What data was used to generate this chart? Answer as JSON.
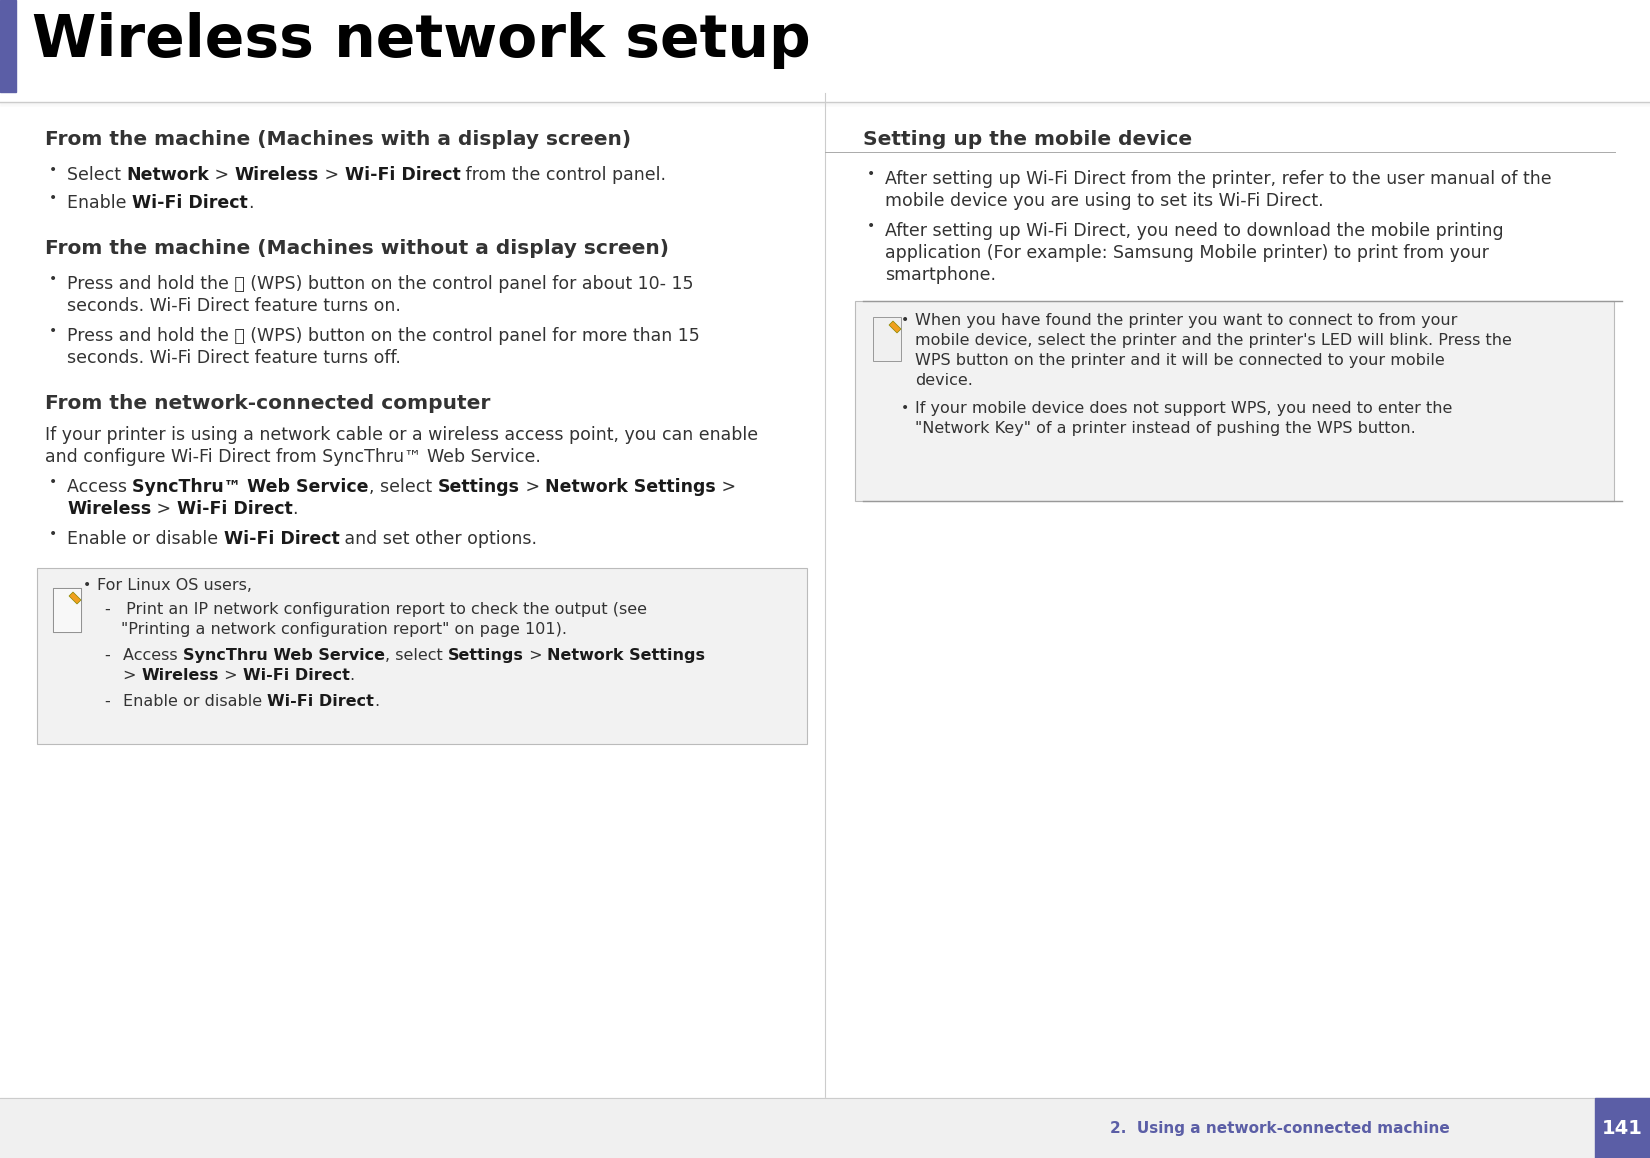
{
  "bg_color": "#ffffff",
  "title": "Wireless network setup",
  "title_color": "#000000",
  "title_fontsize": 42,
  "accent_color": "#5b5ea6",
  "header_color": "#333333",
  "body_color": "#333333",
  "header_fontsize": 14.5,
  "body_fontsize": 12.5,
  "note_fontsize": 11.5,
  "section1_header": "From the machine (Machines with a display screen)",
  "section2_header": "From the machine (Machines without a display screen)",
  "section3_header": "From the network-connected computer",
  "section4_header": "Setting up the mobile device",
  "footer_text": "2.  Using a network-connected machine",
  "footer_page": "141",
  "footer_color": "#5b5ea6"
}
